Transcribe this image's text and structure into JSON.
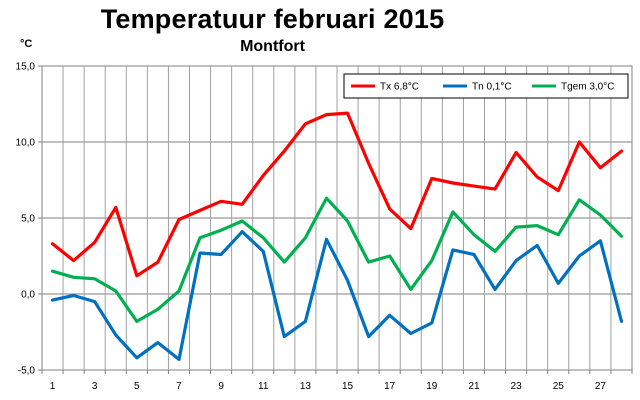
{
  "title": "Temperatuur februari 2015",
  "subtitle": "Montfort",
  "unit_label": "°C",
  "chart_data": {
    "type": "line",
    "title": "Temperatuur februari 2015",
    "subtitle": "Montfort",
    "ylabel": "°C",
    "xlabel": "",
    "x": [
      1,
      2,
      3,
      4,
      5,
      6,
      7,
      8,
      9,
      10,
      11,
      12,
      13,
      14,
      15,
      16,
      17,
      18,
      19,
      20,
      21,
      22,
      23,
      24,
      25,
      26,
      27,
      28
    ],
    "x_tick_labels": [
      "1",
      "3",
      "5",
      "7",
      "9",
      "11",
      "13",
      "15",
      "17",
      "19",
      "21",
      "23",
      "25",
      "27"
    ],
    "y_tick_labels": [
      "15,0",
      "10,0",
      "5,0",
      "0,0",
      "-5,0"
    ],
    "ylim": [
      -5,
      15
    ],
    "grid": true,
    "legend_position": "top-right",
    "series": [
      {
        "name": "Tx 6,8°C",
        "color": "#ff0000",
        "values": [
          3.3,
          2.2,
          3.4,
          5.7,
          1.2,
          2.1,
          4.9,
          5.5,
          6.1,
          5.9,
          7.8,
          9.4,
          11.2,
          11.8,
          11.9,
          8.6,
          5.6,
          4.3,
          7.6,
          7.3,
          7.1,
          6.9,
          9.3,
          7.7,
          6.8,
          10.0,
          8.3,
          9.4
        ]
      },
      {
        "name": "Tn 0,1°C",
        "color": "#0070c0",
        "values": [
          -0.4,
          -0.1,
          -0.5,
          -2.7,
          -4.2,
          -3.2,
          -4.3,
          2.7,
          2.6,
          4.1,
          2.8,
          -2.8,
          -1.8,
          3.6,
          0.9,
          -2.8,
          -1.4,
          -2.6,
          -1.9,
          2.9,
          2.6,
          0.3,
          2.2,
          3.2,
          0.7,
          2.5,
          3.5,
          -1.8
        ]
      },
      {
        "name": "Tgem 3,0°C",
        "color": "#00b050",
        "values": [
          1.5,
          1.1,
          1.0,
          0.2,
          -1.8,
          -1.0,
          0.2,
          3.7,
          4.2,
          4.8,
          3.7,
          2.1,
          3.7,
          6.3,
          4.8,
          2.1,
          2.5,
          0.3,
          2.2,
          5.4,
          3.9,
          2.8,
          4.4,
          4.5,
          3.9,
          6.2,
          5.2,
          3.8
        ]
      }
    ]
  }
}
